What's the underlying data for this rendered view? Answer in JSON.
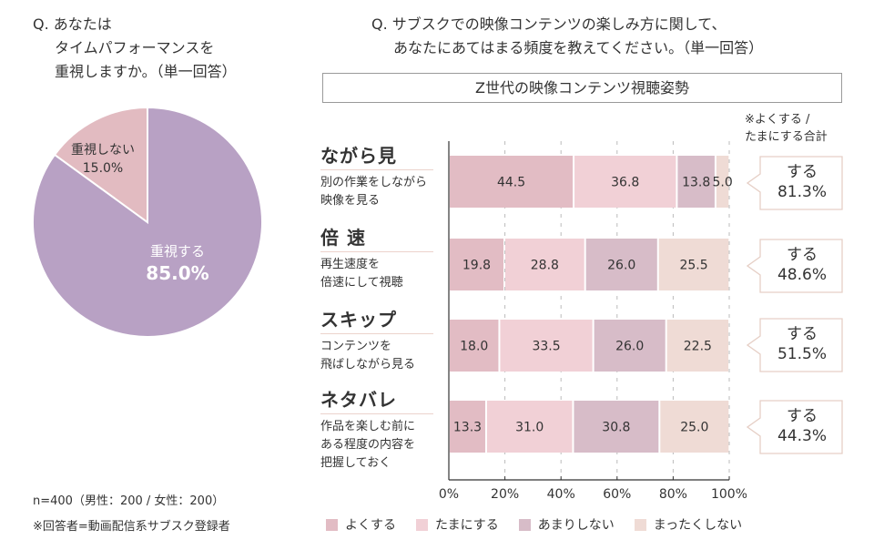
{
  "left_question": {
    "lines": [
      "Q. あなたは",
      "タイムパフォーマンスを",
      "重視しますか。（単一回答）"
    ]
  },
  "right_question": {
    "lines": [
      "Q. サブスクでの映像コンテンツの楽しみ方に関して、",
      "あなたにあてはまる頻度を教えてください。（単一回答）"
    ]
  },
  "chart_title": "Z世代の映像コンテンツ視聴姿勢",
  "callout_note": [
    "※よくする /",
    "たまにする合計"
  ],
  "footnotes": [
    "n=400（男性：200 / 女性：200）",
    "※回答者=動画配信系サブスク登録者"
  ],
  "colors": {
    "pie_yes": "#b8a1c4",
    "pie_no": "#e2bbc1",
    "often": "#e2bcc4",
    "sometimes": "#f1d0d6",
    "rarely": "#d7bcc8",
    "never": "#efdbd5",
    "callout_border": "#e6cfc6",
    "underline": "#ecd3cc"
  },
  "chart_data": [
    {
      "type": "pie",
      "title": "タイムパフォーマンスを重視しますか",
      "slices": [
        {
          "label": "重視する",
          "value": 85.0,
          "display": "85.0%"
        },
        {
          "label": "重視しない",
          "value": 15.0,
          "display": "15.0%"
        }
      ]
    },
    {
      "type": "bar",
      "orientation": "horizontal",
      "stacked": true,
      "title": "Z世代の映像コンテンツ視聴姿勢",
      "categories": [
        {
          "name": "ながら見",
          "desc": [
            "別の作業をしながら",
            "映像を見る"
          ]
        },
        {
          "name": "倍 速",
          "desc": [
            "再生速度を",
            "倍速にして視聴"
          ]
        },
        {
          "name": "スキップ",
          "desc": [
            "コンテンツを",
            "飛ばしながら見る"
          ]
        },
        {
          "name": "ネタバレ",
          "desc": [
            "作品を楽しむ前に",
            "ある程度の内容を",
            "把握しておく"
          ]
        }
      ],
      "series": [
        {
          "name": "よくする",
          "values": [
            44.5,
            19.8,
            18.0,
            13.3
          ]
        },
        {
          "name": "たまにする",
          "values": [
            36.8,
            28.8,
            33.5,
            31.0
          ]
        },
        {
          "name": "あまりしない",
          "values": [
            13.8,
            26.0,
            26.0,
            30.8
          ]
        },
        {
          "name": "まったくしない",
          "values": [
            5.0,
            25.5,
            22.5,
            25.0
          ]
        }
      ],
      "totals": [
        {
          "label": "する",
          "value": "81.3%"
        },
        {
          "label": "する",
          "value": "48.6%"
        },
        {
          "label": "する",
          "value": "51.5%"
        },
        {
          "label": "する",
          "value": "44.3%"
        }
      ],
      "x_ticks": [
        "0%",
        "20%",
        "40%",
        "60%",
        "80%",
        "100%"
      ],
      "xlim": [
        0,
        100
      ],
      "grid": "vertical-dashed",
      "legend": "bottom"
    }
  ]
}
